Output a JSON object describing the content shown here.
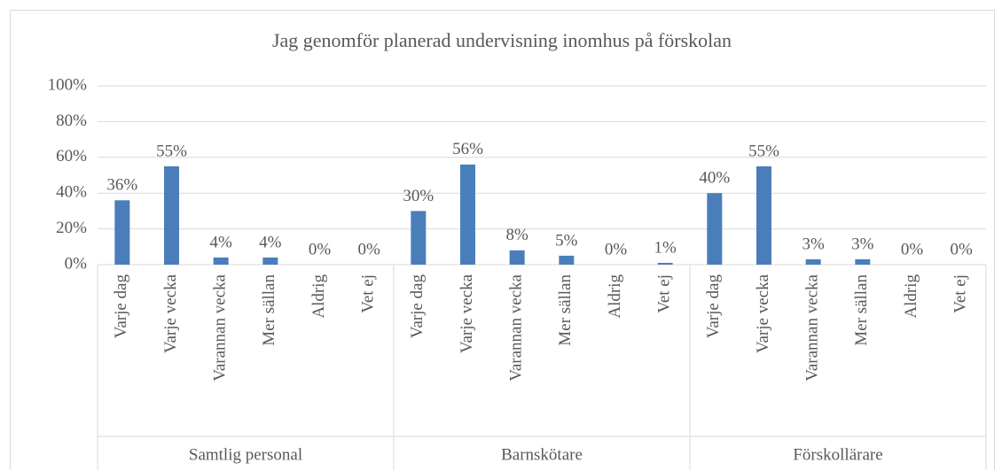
{
  "chart_data": {
    "type": "bar",
    "title": "Jag genomför planerad undervisning inomhus på förskolan",
    "color": "#4a7ebb",
    "ylim": [
      0,
      100
    ],
    "yticks": [
      {
        "value": 0,
        "label": "0%"
      },
      {
        "value": 20,
        "label": "20%"
      },
      {
        "value": 40,
        "label": "40%"
      },
      {
        "value": 60,
        "label": "60%"
      },
      {
        "value": 80,
        "label": "80%"
      },
      {
        "value": 100,
        "label": "100%"
      }
    ],
    "grid": true,
    "groups": [
      {
        "name": "Samtlig personal",
        "categories": [
          "Varje dag",
          "Varje vecka",
          "Varannan vecka",
          "Mer sällan",
          "Aldrig",
          "Vet ej"
        ],
        "values": [
          36,
          55,
          4,
          4,
          0,
          0
        ],
        "value_labels": [
          "36%",
          "55%",
          "4%",
          "4%",
          "0%",
          "0%"
        ]
      },
      {
        "name": "Barnskötare",
        "categories": [
          "Varje dag",
          "Varje vecka",
          "Varannan vecka",
          "Mer sällan",
          "Aldrig",
          "Vet ej"
        ],
        "values": [
          30,
          56,
          8,
          5,
          0,
          1
        ],
        "value_labels": [
          "30%",
          "56%",
          "8%",
          "5%",
          "0%",
          "1%"
        ]
      },
      {
        "name": "Förskollärare",
        "categories": [
          "Varje dag",
          "Varje vecka",
          "Varannan vecka",
          "Mer sällan",
          "Aldrig",
          "Vet ej"
        ],
        "values": [
          40,
          55,
          3,
          3,
          0,
          0
        ],
        "value_labels": [
          "40%",
          "55%",
          "3%",
          "3%",
          "0%",
          "0%"
        ]
      }
    ]
  }
}
